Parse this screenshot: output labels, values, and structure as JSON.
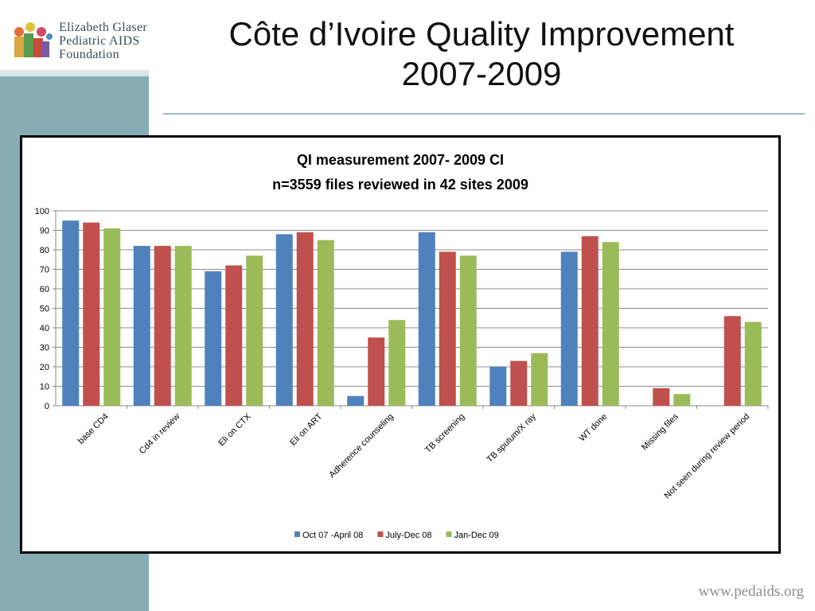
{
  "slide": {
    "title_line1": "Côte d’Ivoire Quality Improvement",
    "title_line2": "2007-2009",
    "footer_url": "www.pedaids.org"
  },
  "logo": {
    "line1": "Elizabeth Glaser",
    "line2": "Pediatric AIDS",
    "line3": "Foundation"
  },
  "colors": {
    "series": [
      "#4f81bd",
      "#c0504d",
      "#9bbb59"
    ],
    "band": "#86adb3"
  },
  "chart_data": {
    "type": "bar",
    "title": "QI measurement 2007- 2009 CI",
    "subtitle": "n=3559 files reviewed in 42 sites 2009",
    "categories": [
      "base CD4",
      "Cd4 in review",
      "Eli on CTX",
      "Eli on ART",
      "Adherence counseling",
      "TB screening",
      "TB sputum/X ray",
      "WT done",
      "Missing files",
      "Not seen during review period"
    ],
    "series": [
      {
        "name": "Oct 07 -April 08",
        "values": [
          95,
          82,
          69,
          88,
          5,
          89,
          20,
          79,
          null,
          null
        ]
      },
      {
        "name": "July-Dec 08",
        "values": [
          94,
          82,
          72,
          89,
          35,
          79,
          23,
          87,
          9,
          46
        ]
      },
      {
        "name": "Jan-Dec  09",
        "values": [
          91,
          82,
          77,
          85,
          44,
          77,
          27,
          84,
          6,
          43
        ]
      }
    ],
    "ylim": [
      0,
      100
    ],
    "yticks": [
      0,
      10,
      20,
      30,
      40,
      50,
      60,
      70,
      80,
      90,
      100
    ],
    "grid": true,
    "legend_position": "bottom"
  }
}
